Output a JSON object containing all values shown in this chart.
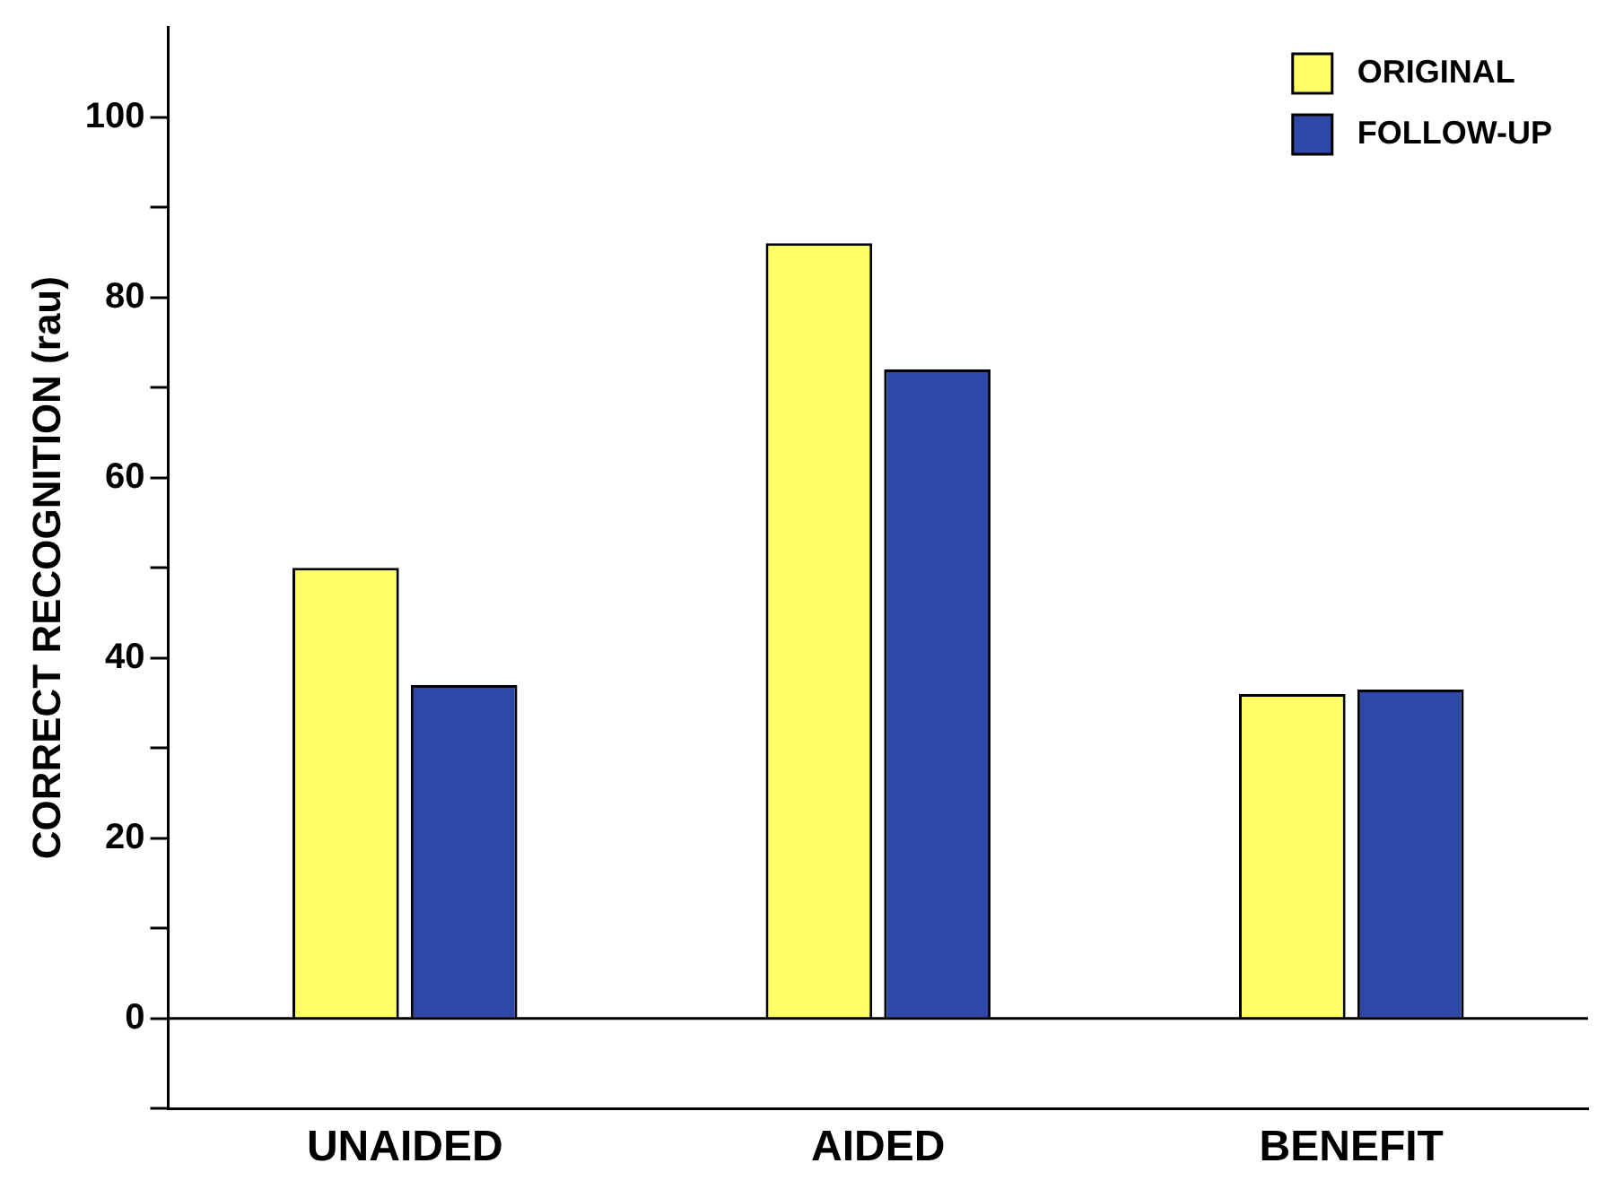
{
  "chart_data": {
    "type": "bar",
    "ylabel": "CORRECT RECOGNITION (rau)",
    "categories": [
      "UNAIDED",
      "AIDED",
      "BENEFIT"
    ],
    "series": [
      {
        "name": "ORIGINAL",
        "color": "#ffff66",
        "values": [
          50,
          86,
          36
        ]
      },
      {
        "name": "FOLLOW-UP",
        "color": "#2e48a8",
        "values": [
          37,
          72,
          36.5
        ]
      }
    ],
    "ylim": [
      -10,
      110
    ],
    "yticks": [
      {
        "value": -10,
        "label": null
      },
      0,
      {
        "value": 10,
        "label": null
      },
      20,
      {
        "value": 30,
        "label": null
      },
      40,
      {
        "value": 50,
        "label": null
      },
      60,
      {
        "value": 70,
        "label": null
      },
      80,
      {
        "value": 90,
        "label": null
      },
      100
    ],
    "ref_lines": [
      {
        "axis": "y",
        "value": 0,
        "color": "#000000"
      }
    ],
    "grid": false,
    "legend": "top right"
  }
}
